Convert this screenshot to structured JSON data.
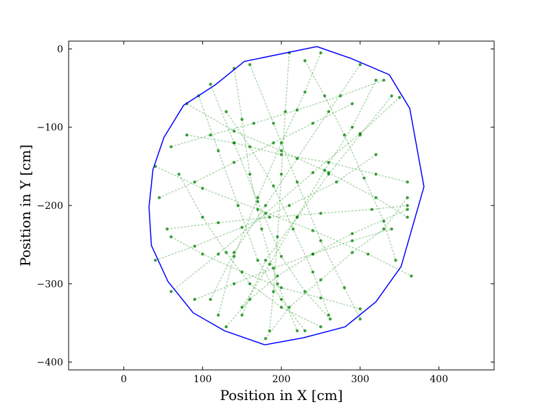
{
  "chart_data": {
    "type": "line",
    "title": "",
    "xlabel": "Position in X [cm]",
    "ylabel": "Position in Y [cm]",
    "xlim": [
      -70,
      470
    ],
    "ylim": [
      -410,
      10
    ],
    "grid": false,
    "x_ticks": [
      0,
      100,
      200,
      300,
      400
    ],
    "y_ticks": [
      0,
      -100,
      -200,
      -300,
      -400
    ],
    "x_tick_labels": [
      "0",
      "100",
      "200",
      "300",
      "400"
    ],
    "y_tick_labels": [
      "0",
      "−100",
      "−200",
      "−300",
      "−400"
    ],
    "series": [
      {
        "kind": "boundary",
        "color": "#0000ff",
        "x": [
          245,
          288,
          337,
          363,
          381,
          352,
          320,
          281,
          228,
          179,
          128,
          88,
          56,
          35,
          32,
          37,
          51,
          76,
          116,
          153,
          245
        ],
        "y": [
          3,
          -12,
          -33,
          -76,
          -176,
          -278,
          -323,
          -355,
          -369,
          -378,
          -360,
          -337,
          -297,
          -251,
          -202,
          -154,
          -113,
          -72,
          -46,
          -16,
          3
        ]
      },
      {
        "kind": "trajectory",
        "color": "#008000",
        "opacity": 0.3,
        "paths": [
          {
            "x": [
              40,
              100,
              170,
              240,
              310,
              365
            ],
            "y": [
              -150,
              -178,
              -205,
              -232,
              -262,
              -290
            ]
          },
          {
            "x": [
              60,
              120,
              180,
              240,
              300,
              350
            ],
            "y": [
              -310,
              -262,
              -210,
              -158,
              -108,
              -62
            ]
          },
          {
            "x": [
              110,
              140,
              170,
              200,
              230,
              262
            ],
            "y": [
              -45,
              -120,
              -195,
              -265,
              -310,
              -345
            ]
          },
          {
            "x": [
              160,
              190,
              220,
              250,
              280,
              300
            ],
            "y": [
              -20,
              -95,
              -170,
              -245,
              -305,
              -345
            ]
          },
          {
            "x": [
              210,
              205,
              200,
              195,
              190,
              185
            ],
            "y": [
              -5,
              -80,
              -160,
              -240,
              -310,
              -360
            ]
          },
          {
            "x": [
              60,
              100,
              150,
              200,
              250,
              300
            ],
            "y": [
              -240,
              -262,
              -285,
              -305,
              -318,
              -332
            ]
          },
          {
            "x": [
              80,
              140,
              200,
              260,
              320,
              360
            ],
            "y": [
              -70,
              -105,
              -130,
              -158,
              -190,
              -215
            ]
          },
          {
            "x": [
              250,
              230,
              200,
              170,
              140,
              120
            ],
            "y": [
              -5,
              -55,
              -120,
              -190,
              -265,
              -340
            ]
          },
          {
            "x": [
              300,
              260,
              220,
              180,
              140,
              110
            ],
            "y": [
              -20,
              -80,
              -140,
              -200,
              -260,
              -320
            ]
          },
          {
            "x": [
              340,
              300,
              260,
              220,
              180,
              150
            ],
            "y": [
              -60,
              -110,
              -160,
              -215,
              -270,
              -340
            ]
          },
          {
            "x": [
              45,
              90,
              140,
              190,
              240,
              290
            ],
            "y": [
              -190,
              -170,
              -145,
              -120,
              -95,
              -70
            ]
          },
          {
            "x": [
              60,
              110,
              165,
              220,
              275,
              330
            ],
            "y": [
              -125,
              -110,
              -95,
              -78,
              -60,
              -40
            ]
          },
          {
            "x": [
              40,
              90,
              150,
              210,
              270,
              320
            ],
            "y": [
              -270,
              -252,
              -228,
              -200,
              -170,
              -135
            ]
          },
          {
            "x": [
              130,
              160,
              195,
              240,
              290,
              360
            ],
            "y": [
              -355,
              -320,
              -290,
              -262,
              -236,
              -205
            ]
          },
          {
            "x": [
              180,
              210,
              250,
              290,
              330,
              360
            ],
            "y": [
              -370,
              -330,
              -295,
              -260,
              -230,
              -190
            ]
          },
          {
            "x": [
              95,
              120,
              145,
              170,
              200,
              230
            ],
            "y": [
              -60,
              -130,
              -200,
              -270,
              -320,
              -360
            ]
          },
          {
            "x": [
              320,
              290,
              255,
              220,
              185,
              150
            ],
            "y": [
              -40,
              -100,
              -155,
              -215,
              -275,
              -330
            ]
          },
          {
            "x": [
              80,
              140,
              200,
              260,
              320,
              360
            ],
            "y": [
              -110,
              -120,
              -135,
              -145,
              -160,
              -170
            ]
          },
          {
            "x": [
              55,
              120,
              185,
              250,
              315,
              360
            ],
            "y": [
              -230,
              -222,
              -215,
              -210,
              -205,
              -200
            ]
          },
          {
            "x": [
              90,
              140,
              190,
              240,
              290,
              340
            ],
            "y": [
              -320,
              -300,
              -280,
              -262,
              -245,
              -230
            ]
          },
          {
            "x": [
              230,
              255,
              280,
              305,
              330,
              345
            ],
            "y": [
              -15,
              -60,
              -110,
              -165,
              -220,
              -270
            ]
          },
          {
            "x": [
              140,
              150,
              160,
              175,
              195,
              220
            ],
            "y": [
              -25,
              -90,
              -160,
              -230,
              -300,
              -360
            ]
          },
          {
            "x": [
              70,
              100,
              130,
              160,
              200,
              250
            ],
            "y": [
              -160,
              -215,
              -260,
              -300,
              -330,
              -355
            ]
          },
          {
            "x": [
              260,
              240,
              215,
              190,
              160,
              130
            ],
            "y": [
              -340,
              -285,
              -230,
              -175,
              -125,
              -80
            ]
          }
        ]
      }
    ]
  }
}
